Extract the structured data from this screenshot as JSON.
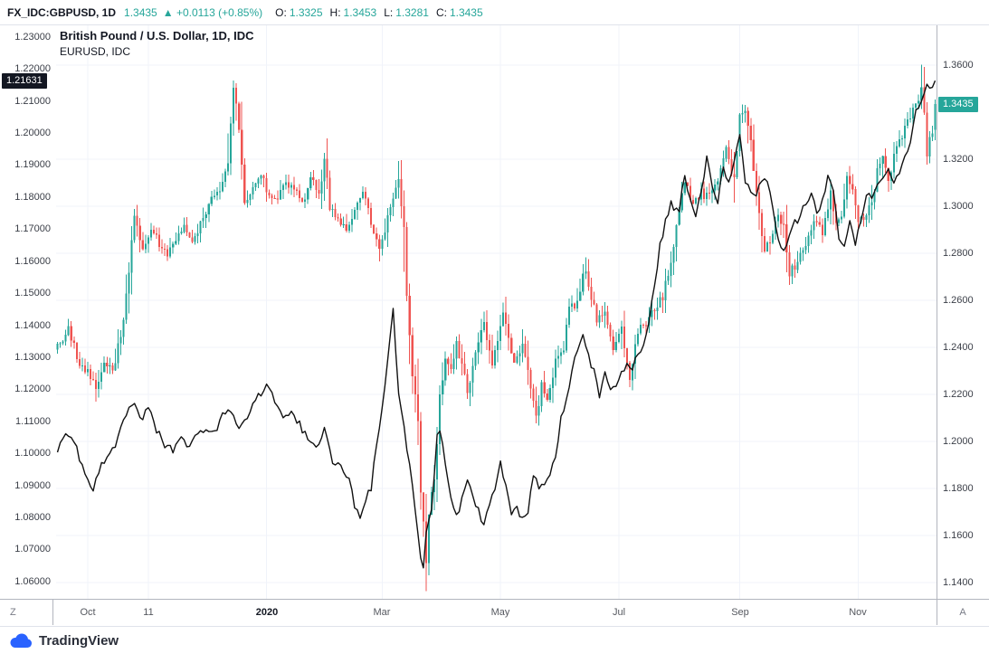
{
  "header": {
    "symbol": "FX_IDC:GBPUSD, 1D",
    "price": "1.3435",
    "arrow": "▲",
    "change": "+0.0113 (+0.85%)",
    "ohlc": [
      {
        "label": "O:",
        "value": "1.3325"
      },
      {
        "label": "H:",
        "value": "1.3453"
      },
      {
        "label": "L:",
        "value": "1.3281"
      },
      {
        "label": "C:",
        "value": "1.3435"
      }
    ]
  },
  "legend": {
    "line1": "British Pound / U.S. Dollar, 1D, IDC",
    "line2": "EURUSD, IDC"
  },
  "axes": {
    "left_tag": "1.21631",
    "right_tag": "1.3435"
  },
  "time_axis": {
    "timezone_button": "Z",
    "autoscale_button": "A"
  },
  "footer": {
    "brand": "TradingView"
  },
  "colors": {
    "up": "#26a69a",
    "down": "#ef5350",
    "overlay_line": "#111111",
    "left_tag_bg": "#131722",
    "right_tag_bg": "#26a69a",
    "axis_text": "#3a3e47",
    "grid": "#f0f3fa",
    "brand_blue": "#2962ff"
  },
  "chart_data": {
    "type": "candlestick+line",
    "title": "British Pound / U.S. Dollar, 1D, IDC (candles, right scale) with EURUSD, IDC overlay (black line, left scale)",
    "x_period": "Sep 2019 - Dec 2020, daily bars",
    "x_range_days": 320,
    "grid": true,
    "left_axis": {
      "series": "EURUSD",
      "min": 1.0546,
      "max": 1.2336,
      "ticks": [
        "1.23000",
        "1.22000",
        "1.21000",
        "1.20000",
        "1.19000",
        "1.18000",
        "1.17000",
        "1.16000",
        "1.15000",
        "1.14000",
        "1.13000",
        "1.12000",
        "1.11000",
        "1.10000",
        "1.09000",
        "1.08000",
        "1.07000",
        "1.06000"
      ]
    },
    "right_axis": {
      "series": "GBPUSD",
      "min": 1.1331,
      "max": 1.3769,
      "ticks": [
        "1.3600",
        "1.3200",
        "1.3000",
        "1.2800",
        "1.2600",
        "1.2400",
        "1.2200",
        "1.2000",
        "1.1800",
        "1.1600",
        "1.1400"
      ]
    },
    "time_ticks": [
      {
        "day": 11,
        "label": "Oct",
        "bold": false
      },
      {
        "day": 33,
        "label": "11",
        "bold": false
      },
      {
        "day": 76,
        "label": "2020",
        "bold": true
      },
      {
        "day": 118,
        "label": "Mar",
        "bold": false
      },
      {
        "day": 161,
        "label": "May",
        "bold": false
      },
      {
        "day": 204,
        "label": "Jul",
        "bold": false
      },
      {
        "day": 248,
        "label": "Sep",
        "bold": false
      },
      {
        "day": 291,
        "label": "Nov",
        "bold": false
      }
    ],
    "series": [
      {
        "name": "GBPUSD, 1D, IDC",
        "type": "candlestick",
        "scale": "right",
        "last_candle": {
          "o": 1.3325,
          "h": 1.3453,
          "l": 1.3281,
          "c": 1.3435
        },
        "keyframes_day_close": [
          [
            0,
            1.241
          ],
          [
            4,
            1.247
          ],
          [
            8,
            1.233
          ],
          [
            11,
            1.23
          ],
          [
            14,
            1.222
          ],
          [
            17,
            1.235
          ],
          [
            20,
            1.229
          ],
          [
            23,
            1.246
          ],
          [
            25,
            1.262
          ],
          [
            28,
            1.296
          ],
          [
            31,
            1.282
          ],
          [
            34,
            1.289
          ],
          [
            37,
            1.284
          ],
          [
            40,
            1.279
          ],
          [
            43,
            1.286
          ],
          [
            46,
            1.291
          ],
          [
            49,
            1.284
          ],
          [
            52,
            1.292
          ],
          [
            55,
            1.3
          ],
          [
            58,
            1.306
          ],
          [
            62,
            1.316
          ],
          [
            64,
            1.35
          ],
          [
            66,
            1.334
          ],
          [
            68,
            1.3
          ],
          [
            71,
            1.309
          ],
          [
            74,
            1.312
          ],
          [
            77,
            1.306
          ],
          [
            80,
            1.303
          ],
          [
            83,
            1.31
          ],
          [
            86,
            1.308
          ],
          [
            89,
            1.302
          ],
          [
            92,
            1.311
          ],
          [
            95,
            1.305
          ],
          [
            97,
            1.32
          ],
          [
            99,
            1.3
          ],
          [
            102,
            1.294
          ],
          [
            105,
            1.289
          ],
          [
            108,
            1.297
          ],
          [
            111,
            1.305
          ],
          [
            113,
            1.299
          ],
          [
            115,
            1.287
          ],
          [
            117,
            1.282
          ],
          [
            119,
            1.29
          ],
          [
            121,
            1.301
          ],
          [
            124,
            1.313
          ],
          [
            126,
            1.29
          ],
          [
            127,
            1.263
          ],
          [
            129,
            1.228
          ],
          [
            131,
            1.208
          ],
          [
            132,
            1.18
          ],
          [
            134,
            1.149
          ],
          [
            135,
            1.17
          ],
          [
            137,
            1.183
          ],
          [
            139,
            1.219
          ],
          [
            141,
            1.237
          ],
          [
            143,
            1.23
          ],
          [
            145,
            1.241
          ],
          [
            147,
            1.233
          ],
          [
            149,
            1.222
          ],
          [
            152,
            1.238
          ],
          [
            155,
            1.249
          ],
          [
            158,
            1.231
          ],
          [
            160,
            1.244
          ],
          [
            162,
            1.257
          ],
          [
            164,
            1.243
          ],
          [
            166,
            1.233
          ],
          [
            169,
            1.242
          ],
          [
            172,
            1.222
          ],
          [
            174,
            1.21
          ],
          [
            176,
            1.223
          ],
          [
            178,
            1.216
          ],
          [
            181,
            1.233
          ],
          [
            184,
            1.24
          ],
          [
            186,
            1.256
          ],
          [
            189,
            1.26
          ],
          [
            192,
            1.274
          ],
          [
            194,
            1.261
          ],
          [
            196,
            1.251
          ],
          [
            199,
            1.257
          ],
          [
            202,
            1.241
          ],
          [
            205,
            1.248
          ],
          [
            208,
            1.228
          ],
          [
            211,
            1.247
          ],
          [
            214,
            1.249
          ],
          [
            217,
            1.256
          ],
          [
            220,
            1.262
          ],
          [
            223,
            1.276
          ],
          [
            226,
            1.3
          ],
          [
            228,
            1.309
          ],
          [
            231,
            1.302
          ],
          [
            234,
            1.306
          ],
          [
            237,
            1.304
          ],
          [
            240,
            1.312
          ],
          [
            243,
            1.323
          ],
          [
            246,
            1.312
          ],
          [
            248,
            1.338
          ],
          [
            250,
            1.341
          ],
          [
            252,
            1.326
          ],
          [
            255,
            1.299
          ],
          [
            257,
            1.279
          ],
          [
            260,
            1.29
          ],
          [
            262,
            1.298
          ],
          [
            264,
            1.291
          ],
          [
            266,
            1.272
          ],
          [
            269,
            1.276
          ],
          [
            272,
            1.285
          ],
          [
            275,
            1.294
          ],
          [
            278,
            1.289
          ],
          [
            281,
            1.305
          ],
          [
            283,
            1.293
          ],
          [
            285,
            1.296
          ],
          [
            287,
            1.314
          ],
          [
            289,
            1.306
          ],
          [
            291,
            1.292
          ],
          [
            293,
            1.296
          ],
          [
            296,
            1.3
          ],
          [
            298,
            1.315
          ],
          [
            300,
            1.323
          ],
          [
            302,
            1.311
          ],
          [
            305,
            1.325
          ],
          [
            308,
            1.333
          ],
          [
            310,
            1.337
          ],
          [
            312,
            1.343
          ],
          [
            314,
            1.35
          ],
          [
            315,
            1.338
          ],
          [
            316,
            1.322
          ],
          [
            317,
            1.33
          ],
          [
            318,
            1.3325
          ],
          [
            319,
            1.3435
          ]
        ]
      },
      {
        "name": "EURUSD, IDC",
        "type": "line",
        "scale": "left",
        "last_value": 1.21631,
        "keyframes_day_value": [
          [
            0,
            1.1005
          ],
          [
            3,
            1.107
          ],
          [
            6,
            1.104
          ],
          [
            9,
            1.096
          ],
          [
            11,
            1.092
          ],
          [
            13,
            1.089
          ],
          [
            16,
            1.097
          ],
          [
            19,
            1.1
          ],
          [
            22,
            1.104
          ],
          [
            25,
            1.113
          ],
          [
            28,
            1.115
          ],
          [
            31,
            1.11
          ],
          [
            33,
            1.115
          ],
          [
            36,
            1.107
          ],
          [
            39,
            1.103
          ],
          [
            42,
            1.101
          ],
          [
            45,
            1.106
          ],
          [
            48,
            1.102
          ],
          [
            51,
            1.106
          ],
          [
            54,
            1.108
          ],
          [
            57,
            1.106
          ],
          [
            60,
            1.113
          ],
          [
            63,
            1.112
          ],
          [
            66,
            1.109
          ],
          [
            69,
            1.112
          ],
          [
            72,
            1.117
          ],
          [
            76,
            1.1213
          ],
          [
            79,
            1.116
          ],
          [
            82,
            1.111
          ],
          [
            85,
            1.113
          ],
          [
            88,
            1.109
          ],
          [
            91,
            1.104
          ],
          [
            94,
            1.102
          ],
          [
            97,
            1.108
          ],
          [
            100,
            1.098
          ],
          [
            103,
            1.095
          ],
          [
            106,
            1.091
          ],
          [
            108,
            1.084
          ],
          [
            110,
            1.0785
          ],
          [
            112,
            1.086
          ],
          [
            114,
            1.089
          ],
          [
            116,
            1.103
          ],
          [
            118,
            1.113
          ],
          [
            120,
            1.128
          ],
          [
            122,
            1.144
          ],
          [
            124,
            1.118
          ],
          [
            126,
            1.108
          ],
          [
            128,
            1.096
          ],
          [
            130,
            1.082
          ],
          [
            132,
            1.068
          ],
          [
            133,
            1.0636
          ],
          [
            134,
            1.076
          ],
          [
            136,
            1.083
          ],
          [
            138,
            1.105
          ],
          [
            139,
            1.108
          ],
          [
            141,
            1.096
          ],
          [
            143,
            1.086
          ],
          [
            145,
            1.08
          ],
          [
            147,
            1.086
          ],
          [
            149,
            1.092
          ],
          [
            151,
            1.087
          ],
          [
            153,
            1.082
          ],
          [
            155,
            1.078
          ],
          [
            157,
            1.083
          ],
          [
            159,
            1.089
          ],
          [
            161,
            1.097
          ],
          [
            163,
            1.089
          ],
          [
            165,
            1.081
          ],
          [
            167,
            1.083
          ],
          [
            169,
            1.079
          ],
          [
            171,
            1.082
          ],
          [
            173,
            1.092
          ],
          [
            175,
            1.09
          ],
          [
            177,
            1.091
          ],
          [
            179,
            1.094
          ],
          [
            181,
            1.099
          ],
          [
            183,
            1.111
          ],
          [
            185,
            1.117
          ],
          [
            187,
            1.126
          ],
          [
            189,
            1.133
          ],
          [
            191,
            1.1375
          ],
          [
            193,
            1.13
          ],
          [
            195,
            1.126
          ],
          [
            197,
            1.118
          ],
          [
            199,
            1.126
          ],
          [
            201,
            1.121
          ],
          [
            203,
            1.122
          ],
          [
            205,
            1.125
          ],
          [
            207,
            1.128
          ],
          [
            209,
            1.127
          ],
          [
            211,
            1.131
          ],
          [
            213,
            1.134
          ],
          [
            215,
            1.141
          ],
          [
            217,
            1.152
          ],
          [
            219,
            1.165
          ],
          [
            221,
            1.172
          ],
          [
            223,
            1.1778
          ],
          [
            226,
            1.176
          ],
          [
            228,
            1.1873
          ],
          [
            230,
            1.179
          ],
          [
            232,
            1.174
          ],
          [
            234,
            1.181
          ],
          [
            236,
            1.193
          ],
          [
            238,
            1.182
          ],
          [
            240,
            1.179
          ],
          [
            242,
            1.19
          ],
          [
            244,
            1.184
          ],
          [
            246,
            1.191
          ],
          [
            248,
            1.1995
          ],
          [
            250,
            1.185
          ],
          [
            252,
            1.181
          ],
          [
            254,
            1.18
          ],
          [
            256,
            1.186
          ],
          [
            258,
            1.184
          ],
          [
            260,
            1.177
          ],
          [
            262,
            1.166
          ],
          [
            264,
            1.163
          ],
          [
            266,
            1.169
          ],
          [
            268,
            1.172
          ],
          [
            270,
            1.174
          ],
          [
            272,
            1.178
          ],
          [
            274,
            1.182
          ],
          [
            276,
            1.175
          ],
          [
            278,
            1.178
          ],
          [
            280,
            1.186
          ],
          [
            282,
            1.181
          ],
          [
            284,
            1.168
          ],
          [
            286,
            1.165
          ],
          [
            288,
            1.172
          ],
          [
            290,
            1.165
          ],
          [
            292,
            1.173
          ],
          [
            294,
            1.181
          ],
          [
            296,
            1.179
          ],
          [
            298,
            1.183
          ],
          [
            300,
            1.186
          ],
          [
            302,
            1.189
          ],
          [
            304,
            1.185
          ],
          [
            306,
            1.188
          ],
          [
            308,
            1.193
          ],
          [
            310,
            1.198
          ],
          [
            312,
            1.2071
          ],
          [
            314,
            1.211
          ],
          [
            316,
            1.2145
          ],
          [
            318,
            1.213
          ],
          [
            319,
            1.21631
          ]
        ]
      }
    ],
    "note": "Daily candles/line points are interpolated between keyframes read off the chart."
  }
}
